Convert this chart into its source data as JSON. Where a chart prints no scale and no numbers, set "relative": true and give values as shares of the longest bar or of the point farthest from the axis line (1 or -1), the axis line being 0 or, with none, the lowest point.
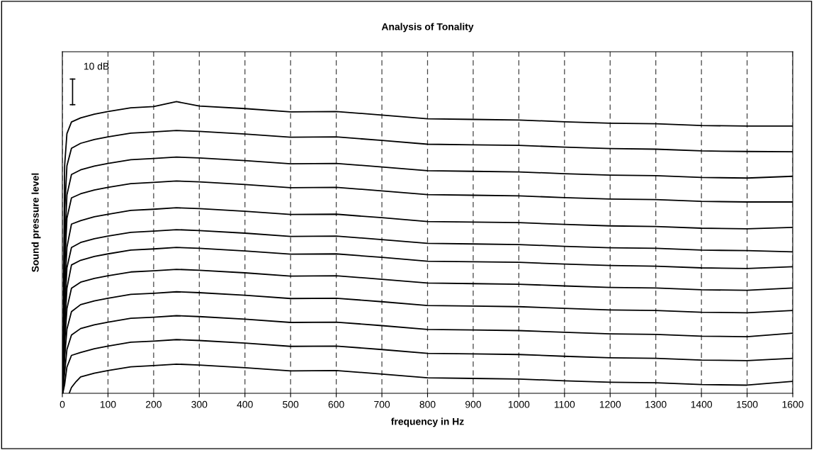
{
  "chart_data": {
    "type": "line",
    "title": "Analysis of Tonality",
    "xlabel": "frequency in Hz",
    "ylabel": "Sound pressure level",
    "relative": true,
    "xlim": [
      0,
      1600
    ],
    "xticks": [
      0,
      100,
      200,
      300,
      400,
      500,
      600,
      700,
      800,
      900,
      1000,
      1100,
      1200,
      1300,
      1400,
      1500,
      1600
    ],
    "grid": "x",
    "marker": "none",
    "line_style": "solid",
    "annotations": [
      "10 dB"
    ],
    "x": [
      1,
      5,
      10,
      20,
      40,
      70,
      100,
      150,
      200,
      250,
      300,
      400,
      500,
      600,
      700,
      800,
      900,
      1000,
      1100,
      1200,
      1300,
      1400,
      1500,
      1600
    ],
    "series": [
      {
        "color": "#000000",
        "values": [
          0.0,
          0.78,
          0.89,
          0.93,
          0.944,
          0.957,
          0.966,
          0.979,
          0.983,
          1.0,
          0.985,
          0.976,
          0.965,
          0.966,
          0.954,
          0.941,
          0.939,
          0.937,
          0.931,
          0.926,
          0.924,
          0.918,
          0.916,
          0.916
        ]
      },
      {
        "color": "#000000",
        "values": [
          0.0,
          0.62,
          0.78,
          0.84,
          0.857,
          0.87,
          0.879,
          0.892,
          0.896,
          0.901,
          0.898,
          0.889,
          0.878,
          0.879,
          0.867,
          0.854,
          0.852,
          0.85,
          0.844,
          0.839,
          0.837,
          0.831,
          0.829,
          0.828
        ]
      },
      {
        "color": "#000000",
        "values": [
          0.0,
          0.5,
          0.68,
          0.75,
          0.766,
          0.779,
          0.788,
          0.801,
          0.805,
          0.81,
          0.807,
          0.798,
          0.787,
          0.788,
          0.776,
          0.763,
          0.761,
          0.759,
          0.753,
          0.748,
          0.746,
          0.74,
          0.738,
          0.744
        ]
      },
      {
        "color": "#000000",
        "values": [
          0.0,
          0.42,
          0.6,
          0.67,
          0.684,
          0.697,
          0.706,
          0.719,
          0.723,
          0.728,
          0.725,
          0.716,
          0.705,
          0.706,
          0.694,
          0.681,
          0.679,
          0.677,
          0.671,
          0.666,
          0.664,
          0.658,
          0.656,
          0.656
        ]
      },
      {
        "color": "#000000",
        "values": [
          0.0,
          0.35,
          0.5,
          0.58,
          0.592,
          0.605,
          0.614,
          0.627,
          0.631,
          0.636,
          0.633,
          0.624,
          0.613,
          0.614,
          0.602,
          0.589,
          0.587,
          0.585,
          0.579,
          0.574,
          0.572,
          0.566,
          0.564,
          0.569
        ]
      },
      {
        "color": "#000000",
        "values": [
          0.0,
          0.28,
          0.43,
          0.5,
          0.517,
          0.53,
          0.539,
          0.552,
          0.556,
          0.561,
          0.558,
          0.549,
          0.538,
          0.539,
          0.527,
          0.514,
          0.512,
          0.51,
          0.504,
          0.499,
          0.497,
          0.491,
          0.489,
          0.485
        ]
      },
      {
        "color": "#000000",
        "values": [
          0.0,
          0.22,
          0.36,
          0.44,
          0.456,
          0.469,
          0.478,
          0.491,
          0.495,
          0.5,
          0.497,
          0.488,
          0.477,
          0.478,
          0.466,
          0.453,
          0.451,
          0.449,
          0.443,
          0.438,
          0.436,
          0.43,
          0.428,
          0.434
        ]
      },
      {
        "color": "#000000",
        "values": [
          0.0,
          0.17,
          0.29,
          0.36,
          0.381,
          0.394,
          0.403,
          0.416,
          0.42,
          0.425,
          0.422,
          0.413,
          0.402,
          0.403,
          0.391,
          0.378,
          0.376,
          0.374,
          0.368,
          0.363,
          0.361,
          0.355,
          0.353,
          0.361
        ]
      },
      {
        "color": "#000000",
        "values": [
          0.0,
          0.12,
          0.22,
          0.28,
          0.304,
          0.317,
          0.326,
          0.339,
          0.343,
          0.348,
          0.345,
          0.336,
          0.325,
          0.326,
          0.314,
          0.301,
          0.299,
          0.297,
          0.291,
          0.286,
          0.284,
          0.278,
          0.276,
          0.284
        ]
      },
      {
        "color": "#000000",
        "values": [
          0.0,
          0.07,
          0.15,
          0.2,
          0.222,
          0.235,
          0.244,
          0.257,
          0.261,
          0.266,
          0.263,
          0.254,
          0.243,
          0.244,
          0.232,
          0.219,
          0.217,
          0.215,
          0.209,
          0.204,
          0.202,
          0.196,
          0.194,
          0.206
        ]
      },
      {
        "color": "#000000",
        "values": [
          0.0,
          0.03,
          0.09,
          0.13,
          0.14,
          0.153,
          0.162,
          0.175,
          0.179,
          0.184,
          0.181,
          0.172,
          0.161,
          0.162,
          0.15,
          0.137,
          0.135,
          0.133,
          0.127,
          0.122,
          0.12,
          0.114,
          0.112,
          0.12
        ]
      },
      {
        "color": "#000000",
        "x": [
          15,
          20,
          30,
          40,
          70,
          100,
          150,
          200,
          250,
          300,
          400,
          500,
          600,
          700,
          800,
          900,
          1000,
          1100,
          1200,
          1300,
          1400,
          1500,
          1600
        ],
        "values": [
          0.0,
          0.02,
          0.04,
          0.056,
          0.069,
          0.078,
          0.091,
          0.095,
          0.1,
          0.097,
          0.088,
          0.077,
          0.078,
          0.066,
          0.053,
          0.051,
          0.049,
          0.043,
          0.038,
          0.036,
          0.03,
          0.028,
          0.041
        ]
      }
    ]
  }
}
